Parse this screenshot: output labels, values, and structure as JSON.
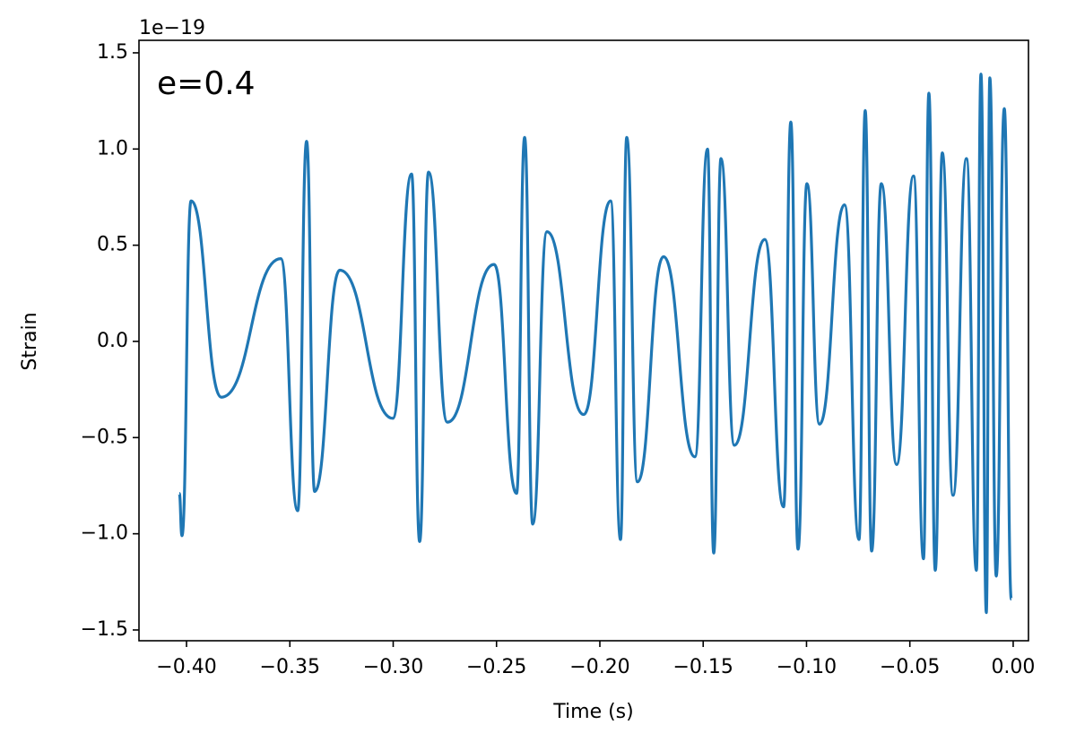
{
  "chart_data": {
    "type": "line",
    "annotation": "e=0.4",
    "offset_text": "1e−19",
    "xlabel": "Time (s)",
    "ylabel": "Strain",
    "series": [
      {
        "color": "#1f77b4",
        "x": [
          -0.4035,
          -0.4022,
          -0.3978,
          -0.3831,
          -0.3544,
          -0.3462,
          -0.3419,
          -0.338,
          -0.3258,
          -0.3002,
          -0.2911,
          -0.2872,
          -0.2829,
          -0.2738,
          -0.2512,
          -0.2403,
          -0.2364,
          -0.2325,
          -0.2256,
          -0.2078,
          -0.1948,
          -0.19,
          -0.187,
          -0.1818,
          -0.1692,
          -0.154,
          -0.1479,
          -0.1449,
          -0.1414,
          -0.1349,
          -0.1202,
          -0.1111,
          -0.1076,
          -0.1041,
          -0.0998,
          -0.0937,
          -0.0816,
          -0.0746,
          -0.0716,
          -0.0685,
          -0.0638,
          -0.0564,
          -0.0482,
          -0.0434,
          -0.0408,
          -0.0377,
          -0.0343,
          -0.0291,
          -0.0226,
          -0.0178,
          -0.0156,
          -0.013,
          -0.0113,
          -0.0082,
          -0.0043,
          -0.0009
        ],
        "values": [
          -0.79,
          -1.01,
          0.73,
          -0.29,
          0.43,
          -0.88,
          1.04,
          -0.78,
          0.37,
          -0.4,
          0.87,
          -1.04,
          0.88,
          -0.42,
          0.4,
          -0.79,
          1.06,
          -0.95,
          0.57,
          -0.38,
          0.73,
          -1.03,
          1.06,
          -0.73,
          0.44,
          -0.6,
          1.0,
          -1.1,
          0.95,
          -0.54,
          0.53,
          -0.86,
          1.14,
          -1.08,
          0.82,
          -0.43,
          0.71,
          -1.03,
          1.2,
          -1.09,
          0.82,
          -0.64,
          0.86,
          -1.13,
          1.29,
          -1.19,
          0.98,
          -0.8,
          0.95,
          -1.19,
          1.39,
          -1.41,
          1.37,
          -1.22,
          1.21,
          -1.34
        ]
      }
    ],
    "xlim": [
      -0.423,
      0.0074
    ],
    "ylim": [
      -1.556,
      1.565
    ],
    "xticks": [
      {
        "value": -0.4,
        "label": "−0.40"
      },
      {
        "value": -0.35,
        "label": "−0.35"
      },
      {
        "value": -0.3,
        "label": "−0.30"
      },
      {
        "value": -0.25,
        "label": "−0.25"
      },
      {
        "value": -0.2,
        "label": "−0.20"
      },
      {
        "value": -0.15,
        "label": "−0.15"
      },
      {
        "value": -0.1,
        "label": "−0.10"
      },
      {
        "value": -0.05,
        "label": "−0.05"
      },
      {
        "value": 0,
        "label": "0.00"
      }
    ],
    "yticks": [
      {
        "value": -1.5,
        "label": "−1.5"
      },
      {
        "value": -1,
        "label": "−1.0"
      },
      {
        "value": -0.5,
        "label": "−0.5"
      },
      {
        "value": 0,
        "label": "0.0"
      },
      0.5,
      {
        "value": 1,
        "label": "1.0"
      },
      1.5
    ]
  }
}
